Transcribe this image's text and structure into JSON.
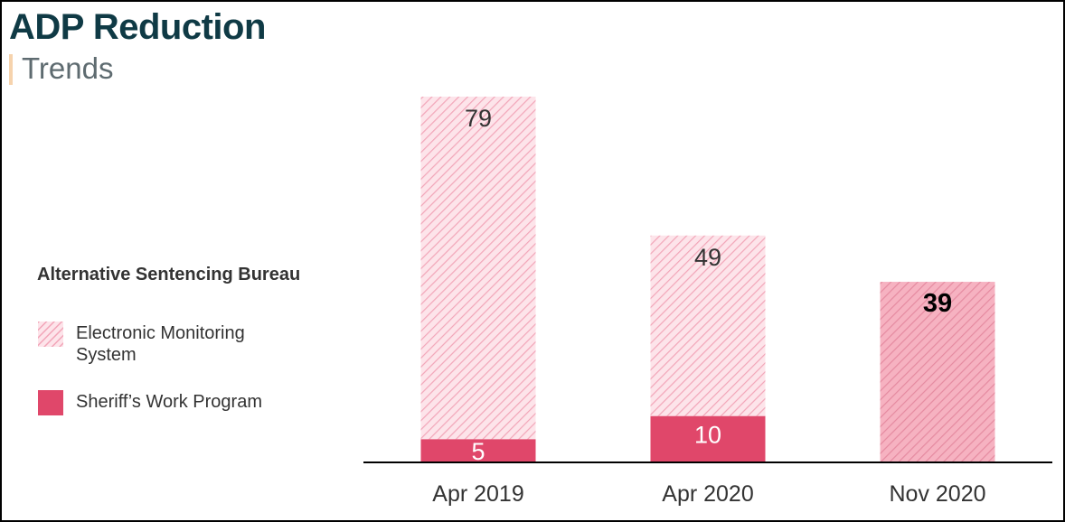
{
  "header": {
    "title": "ADP Reduction",
    "subtitle": "Trends"
  },
  "legend": {
    "title": "Alternative Sentencing Bureau",
    "items": [
      {
        "label": "Electronic Monitoring System",
        "line1": "Electronic Monitoring",
        "line2": "System",
        "style": "hatched"
      },
      {
        "label": "Sheriff’s Work Program",
        "style": "solid"
      }
    ]
  },
  "colors": {
    "accent_title": "#0f3a45",
    "hatch_light_bg": "#fde4ea",
    "hatch_light_stripe": "#f2a5b8",
    "hatch_dark_bg": "#f6b2c1",
    "hatch_dark_stripe": "#e58aa0",
    "solid": "#e0476a"
  },
  "chart_data": {
    "type": "bar",
    "stacked": true,
    "categories": [
      "Apr 2019",
      "Apr 2020",
      "Nov 2020"
    ],
    "series": [
      {
        "name": "Sheriff’s Work Program",
        "values": [
          5,
          10,
          0
        ]
      },
      {
        "name": "Electronic Monitoring System",
        "values": [
          74,
          39,
          39
        ]
      }
    ],
    "data_labels": {
      "Sheriff’s Work Program": [
        "5",
        "10",
        ""
      ],
      "Electronic Monitoring System": [
        "79",
        "49",
        "39"
      ]
    },
    "title": "ADP Reduction",
    "subtitle": "Trends",
    "xlabel": "",
    "ylabel": "",
    "ylim": [
      0,
      79
    ],
    "grid": false,
    "legend_position": "left"
  }
}
